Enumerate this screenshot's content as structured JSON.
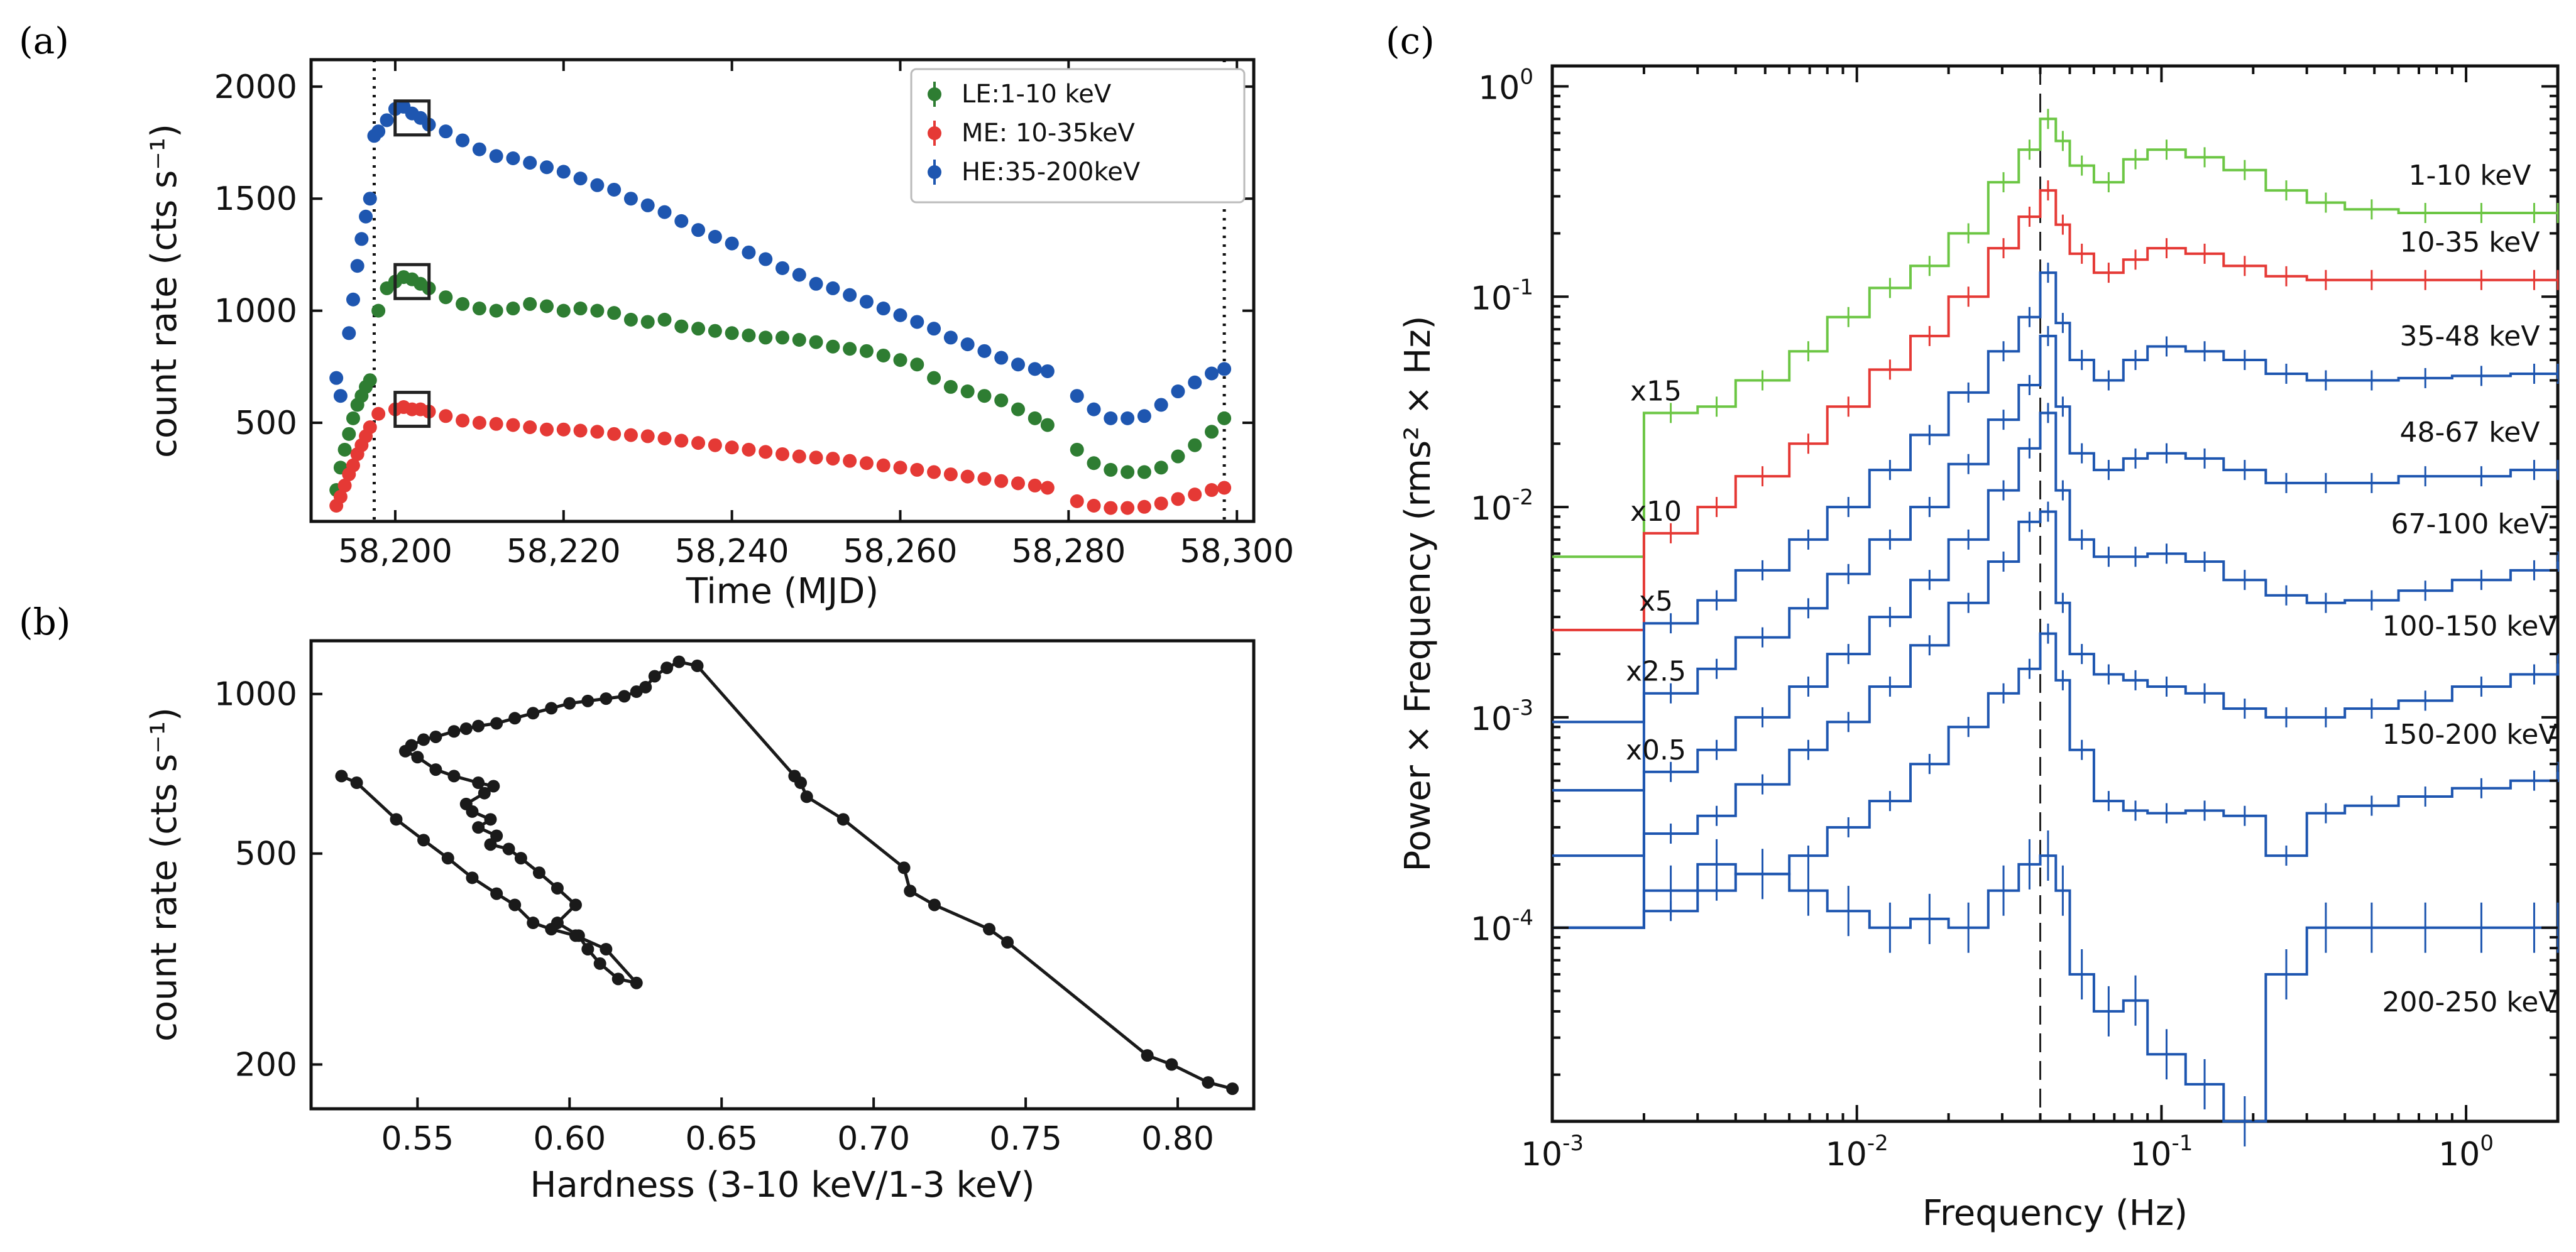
{
  "panels": {
    "a": "(a)",
    "b": "(b)",
    "c": "(c)"
  },
  "chart_data": [
    {
      "id": "a",
      "type": "scatter",
      "xlabel": "Time (MJD)",
      "ylabel": "count rate (cts s⁻¹)",
      "xlim": [
        58190,
        58302
      ],
      "ylim": [
        60,
        2120
      ],
      "xticks": [
        58200,
        58220,
        58240,
        58260,
        58280,
        58300
      ],
      "xtick_labels": [
        "58,200",
        "58,220",
        "58,240",
        "58,260",
        "58,280",
        "58,300"
      ],
      "yticks": [
        500,
        1000,
        1500,
        2000
      ],
      "ytick_labels": [
        "500",
        "1000",
        "1500",
        "2000"
      ],
      "vlines": [
        58197.5,
        58298.5
      ],
      "boxes": [
        {
          "x": 58202,
          "y": 1860
        },
        {
          "x": 58202,
          "y": 1130
        },
        {
          "x": 58202,
          "y": 560
        }
      ],
      "legend": {
        "position": "top-right",
        "entries": [
          "LE:1-10 keV",
          "ME: 10-35keV",
          "HE:35-200keV"
        ]
      },
      "series": [
        {
          "name": "LE:1-10 keV",
          "color": "#2e7d32",
          "x": [
            58193.0,
            58193.5,
            58194,
            58194.5,
            58195,
            58195.5,
            58196,
            58196.5,
            58197,
            58198,
            58199,
            58200,
            58201,
            58202,
            58203,
            58204,
            58206,
            58208,
            58210,
            58212,
            58214,
            58216,
            58218,
            58220,
            58222,
            58224,
            58226,
            58228,
            58230,
            58232,
            58234,
            58236,
            58238,
            58240,
            58242,
            58244,
            58246,
            58248,
            58250,
            58252,
            58254,
            58256,
            58258,
            58260,
            58262,
            58264,
            58266,
            58268,
            58270,
            58272,
            58274,
            58276,
            58277.5,
            58281,
            58283,
            58285,
            58287,
            58289,
            58291,
            58293,
            58295,
            58297,
            58298.5
          ],
          "y": [
            200,
            300,
            380,
            450,
            520,
            580,
            620,
            660,
            690,
            1000,
            1100,
            1130,
            1150,
            1140,
            1120,
            1100,
            1060,
            1030,
            1010,
            1000,
            1010,
            1030,
            1020,
            1000,
            1010,
            1000,
            990,
            960,
            950,
            960,
            930,
            920,
            910,
            900,
            890,
            880,
            880,
            870,
            860,
            840,
            830,
            820,
            800,
            780,
            760,
            700,
            660,
            640,
            620,
            600,
            560,
            520,
            490,
            380,
            320,
            290,
            280,
            280,
            300,
            350,
            400,
            460,
            520
          ]
        },
        {
          "name": "ME: 10-35keV",
          "color": "#e53935",
          "x": [
            58193.0,
            58193.5,
            58194,
            58194.5,
            58195,
            58195.5,
            58196,
            58196.5,
            58197,
            58198,
            58200,
            58201,
            58202,
            58203,
            58204,
            58206,
            58208,
            58210,
            58212,
            58214,
            58216,
            58218,
            58220,
            58222,
            58224,
            58226,
            58228,
            58230,
            58232,
            58234,
            58236,
            58238,
            58240,
            58242,
            58244,
            58246,
            58248,
            58250,
            58252,
            58254,
            58256,
            58258,
            58260,
            58262,
            58264,
            58266,
            58268,
            58270,
            58272,
            58274,
            58276,
            58277.5,
            58281,
            58283,
            58285,
            58287,
            58289,
            58291,
            58293,
            58295,
            58297,
            58298.5
          ],
          "y": [
            130,
            170,
            220,
            270,
            310,
            360,
            400,
            440,
            480,
            540,
            560,
            570,
            560,
            560,
            550,
            530,
            510,
            500,
            495,
            490,
            480,
            470,
            470,
            465,
            460,
            450,
            445,
            440,
            430,
            420,
            410,
            400,
            390,
            380,
            370,
            360,
            350,
            345,
            340,
            330,
            320,
            310,
            300,
            290,
            280,
            270,
            260,
            250,
            240,
            230,
            220,
            210,
            150,
            130,
            120,
            120,
            125,
            140,
            160,
            180,
            200,
            210
          ]
        },
        {
          "name": "HE:35-200keV",
          "color": "#1e56b0",
          "x": [
            58193.0,
            58193.5,
            58194.5,
            58195,
            58195.5,
            58196,
            58196.5,
            58197,
            58197.5,
            58198,
            58199,
            58200,
            58201,
            58202,
            58203,
            58204,
            58206,
            58208,
            58210,
            58212,
            58214,
            58216,
            58218,
            58220,
            58222,
            58224,
            58226,
            58228,
            58230,
            58232,
            58234,
            58236,
            58238,
            58240,
            58242,
            58244,
            58246,
            58248,
            58250,
            58252,
            58254,
            58256,
            58258,
            58260,
            58262,
            58264,
            58266,
            58268,
            58270,
            58272,
            58274,
            58276,
            58277.5,
            58281,
            58283,
            58285,
            58287,
            58289,
            58291,
            58293,
            58295,
            58297,
            58298.5
          ],
          "y": [
            700,
            620,
            900,
            1050,
            1200,
            1320,
            1420,
            1500,
            1780,
            1800,
            1850,
            1900,
            1910,
            1880,
            1860,
            1830,
            1800,
            1760,
            1720,
            1690,
            1680,
            1660,
            1640,
            1620,
            1590,
            1560,
            1540,
            1500,
            1470,
            1440,
            1400,
            1360,
            1330,
            1300,
            1260,
            1230,
            1190,
            1160,
            1120,
            1100,
            1070,
            1040,
            1010,
            980,
            950,
            920,
            880,
            850,
            820,
            790,
            760,
            740,
            730,
            620,
            560,
            520,
            520,
            530,
            580,
            640,
            680,
            720,
            740
          ]
        }
      ]
    },
    {
      "id": "b",
      "type": "line",
      "xlabel": "Hardness (3-10 keV/1-3 keV)",
      "ylabel": "count rate (cts s⁻¹)",
      "xscale": "linear",
      "yscale": "log",
      "xlim": [
        0.515,
        0.825
      ],
      "ylim": [
        165,
        1260
      ],
      "xticks": [
        0.55,
        0.6,
        0.65,
        0.7,
        0.75,
        0.8
      ],
      "xtick_labels": [
        "0.55",
        "0.60",
        "0.65",
        "0.70",
        "0.75",
        "0.80"
      ],
      "yticks": [
        200,
        500,
        1000
      ],
      "ytick_labels": [
        "200",
        "500",
        "1000"
      ],
      "color": "#1a1a1a",
      "x": [
        0.818,
        0.81,
        0.798,
        0.79,
        0.744,
        0.738,
        0.72,
        0.712,
        0.71,
        0.69,
        0.678,
        0.676,
        0.674,
        0.642,
        0.636,
        0.632,
        0.628,
        0.625,
        0.622,
        0.618,
        0.612,
        0.606,
        0.6,
        0.594,
        0.588,
        0.582,
        0.576,
        0.57,
        0.566,
        0.562,
        0.556,
        0.552,
        0.548,
        0.546,
        0.55,
        0.556,
        0.562,
        0.57,
        0.575,
        0.572,
        0.566,
        0.568,
        0.574,
        0.57,
        0.576,
        0.574,
        0.58,
        0.584,
        0.59,
        0.596,
        0.602,
        0.596,
        0.603,
        0.606,
        0.61,
        0.616,
        0.622,
        0.612,
        0.602,
        0.594,
        0.588,
        0.582,
        0.576,
        0.568,
        0.56,
        0.552,
        0.543,
        0.53,
        0.525
      ],
      "y": [
        180,
        185,
        200,
        208,
        340,
        360,
        400,
        425,
        470,
        580,
        640,
        680,
        700,
        1130,
        1150,
        1120,
        1080,
        1030,
        1010,
        990,
        980,
        970,
        960,
        940,
        920,
        900,
        880,
        870,
        860,
        850,
        830,
        820,
        800,
        780,
        760,
        720,
        700,
        680,
        670,
        650,
        620,
        600,
        580,
        560,
        540,
        520,
        510,
        490,
        460,
        430,
        400,
        370,
        350,
        330,
        310,
        290,
        285,
        330,
        350,
        360,
        370,
        400,
        420,
        450,
        490,
        530,
        580,
        680,
        700
      ]
    },
    {
      "id": "c",
      "type": "line",
      "xlabel": "Frequency (Hz)",
      "ylabel": "Power × Frequency  (rms² × Hz)",
      "xscale": "log",
      "yscale": "log",
      "xlim": [
        0.001,
        2.0
      ],
      "ylim": [
        1.2e-05,
        1.25
      ],
      "xticks": [
        0.001,
        0.01,
        0.1,
        1.0
      ],
      "xtick_labels": [
        "10",
        "10",
        "10",
        "10"
      ],
      "xtick_exponents": [
        "-3",
        "-2",
        "-1",
        "0"
      ],
      "yticks": [
        0.0001,
        0.001,
        0.01,
        0.1,
        1.0
      ],
      "ytick_labels": [
        "10",
        "10",
        "10",
        "10",
        "10"
      ],
      "ytick_exponents": [
        "-4",
        "-3",
        "-2",
        "-1",
        "0"
      ],
      "vline": 0.04,
      "multipliers": [
        "x15",
        "x10",
        "x5",
        "x2.5",
        "x0.5"
      ],
      "freq": [
        0.001,
        0.002,
        0.003,
        0.004,
        0.006,
        0.008,
        0.011,
        0.015,
        0.02,
        0.027,
        0.034,
        0.04,
        0.045,
        0.05,
        0.06,
        0.075,
        0.09,
        0.12,
        0.16,
        0.22,
        0.3,
        0.4,
        0.6,
        0.9,
        1.4,
        2.0
      ],
      "series": [
        {
          "name": "1-10 keV",
          "color": "#6cc644",
          "values": [
            0.0058,
            0.028,
            0.03,
            0.04,
            0.055,
            0.08,
            0.11,
            0.14,
            0.2,
            0.35,
            0.5,
            0.7,
            0.55,
            0.42,
            0.35,
            0.45,
            0.5,
            0.46,
            0.4,
            0.32,
            0.28,
            0.26,
            0.25,
            0.25,
            0.25,
            0.25
          ]
        },
        {
          "name": "10-35 keV",
          "color": "#e53935",
          "values": [
            0.0026,
            0.0075,
            0.01,
            0.014,
            0.02,
            0.03,
            0.045,
            0.065,
            0.1,
            0.17,
            0.24,
            0.32,
            0.22,
            0.16,
            0.13,
            0.15,
            0.17,
            0.16,
            0.14,
            0.125,
            0.12,
            0.12,
            0.12,
            0.12,
            0.12,
            0.12
          ]
        },
        {
          "name": "35-48 keV",
          "color": "#1e56b0",
          "values": [
            0.00095,
            0.0028,
            0.0036,
            0.005,
            0.007,
            0.01,
            0.015,
            0.022,
            0.035,
            0.055,
            0.08,
            0.13,
            0.075,
            0.05,
            0.04,
            0.05,
            0.058,
            0.055,
            0.05,
            0.043,
            0.04,
            0.04,
            0.041,
            0.042,
            0.043,
            0.043
          ]
        },
        {
          "name": "48-67 keV",
          "color": "#1e56b0",
          "values": [
            0.00045,
            0.0013,
            0.0017,
            0.0024,
            0.0033,
            0.0048,
            0.007,
            0.01,
            0.016,
            0.026,
            0.038,
            0.065,
            0.03,
            0.018,
            0.015,
            0.017,
            0.018,
            0.017,
            0.015,
            0.013,
            0.013,
            0.013,
            0.014,
            0.014,
            0.015,
            0.015
          ]
        },
        {
          "name": "67-100 keV",
          "color": "#1e56b0",
          "values": [
            0.00022,
            0.00055,
            0.0007,
            0.001,
            0.0014,
            0.002,
            0.003,
            0.0045,
            0.007,
            0.012,
            0.019,
            0.028,
            0.012,
            0.007,
            0.0058,
            0.0058,
            0.006,
            0.0055,
            0.0045,
            0.0038,
            0.0035,
            0.0036,
            0.004,
            0.0045,
            0.005,
            0.0055
          ]
        },
        {
          "name": "100-150 keV",
          "color": "#1e56b0",
          "values": [
            0.0001,
            0.00028,
            0.00034,
            0.00048,
            0.0007,
            0.00095,
            0.0014,
            0.0022,
            0.0035,
            0.0055,
            0.0085,
            0.0095,
            0.0035,
            0.002,
            0.0016,
            0.0015,
            0.0014,
            0.0013,
            0.0011,
            0.001,
            0.001,
            0.0011,
            0.0012,
            0.0014,
            0.0016,
            0.0018
          ]
        },
        {
          "name": "150-200 keV",
          "color": "#1e56b0",
          "values": [
            0.0001,
            0.00012,
            0.00015,
            0.00018,
            0.00022,
            0.0003,
            0.0004,
            0.0006,
            0.0009,
            0.0013,
            0.0017,
            0.0025,
            0.0015,
            0.0007,
            0.0004,
            0.00036,
            0.00035,
            0.00036,
            0.00034,
            0.00022,
            0.00035,
            0.00038,
            0.00042,
            0.00046,
            0.0005,
            0.00055
          ]
        },
        {
          "name": "200-250 keV",
          "color": "#1e56b0",
          "values": [
            0.0001,
            0.00015,
            0.0002,
            0.00018,
            0.00015,
            0.00012,
            0.0001,
            0.00011,
            0.0001,
            0.00015,
            0.0002,
            0.00022,
            0.00015,
            6e-05,
            4e-05,
            4.5e-05,
            2.5e-05,
            1.8e-05,
            1.2e-05,
            6e-05,
            0.0001,
            0.0001,
            0.0001,
            0.0001,
            0.0001,
            0.0001
          ]
        }
      ]
    }
  ]
}
